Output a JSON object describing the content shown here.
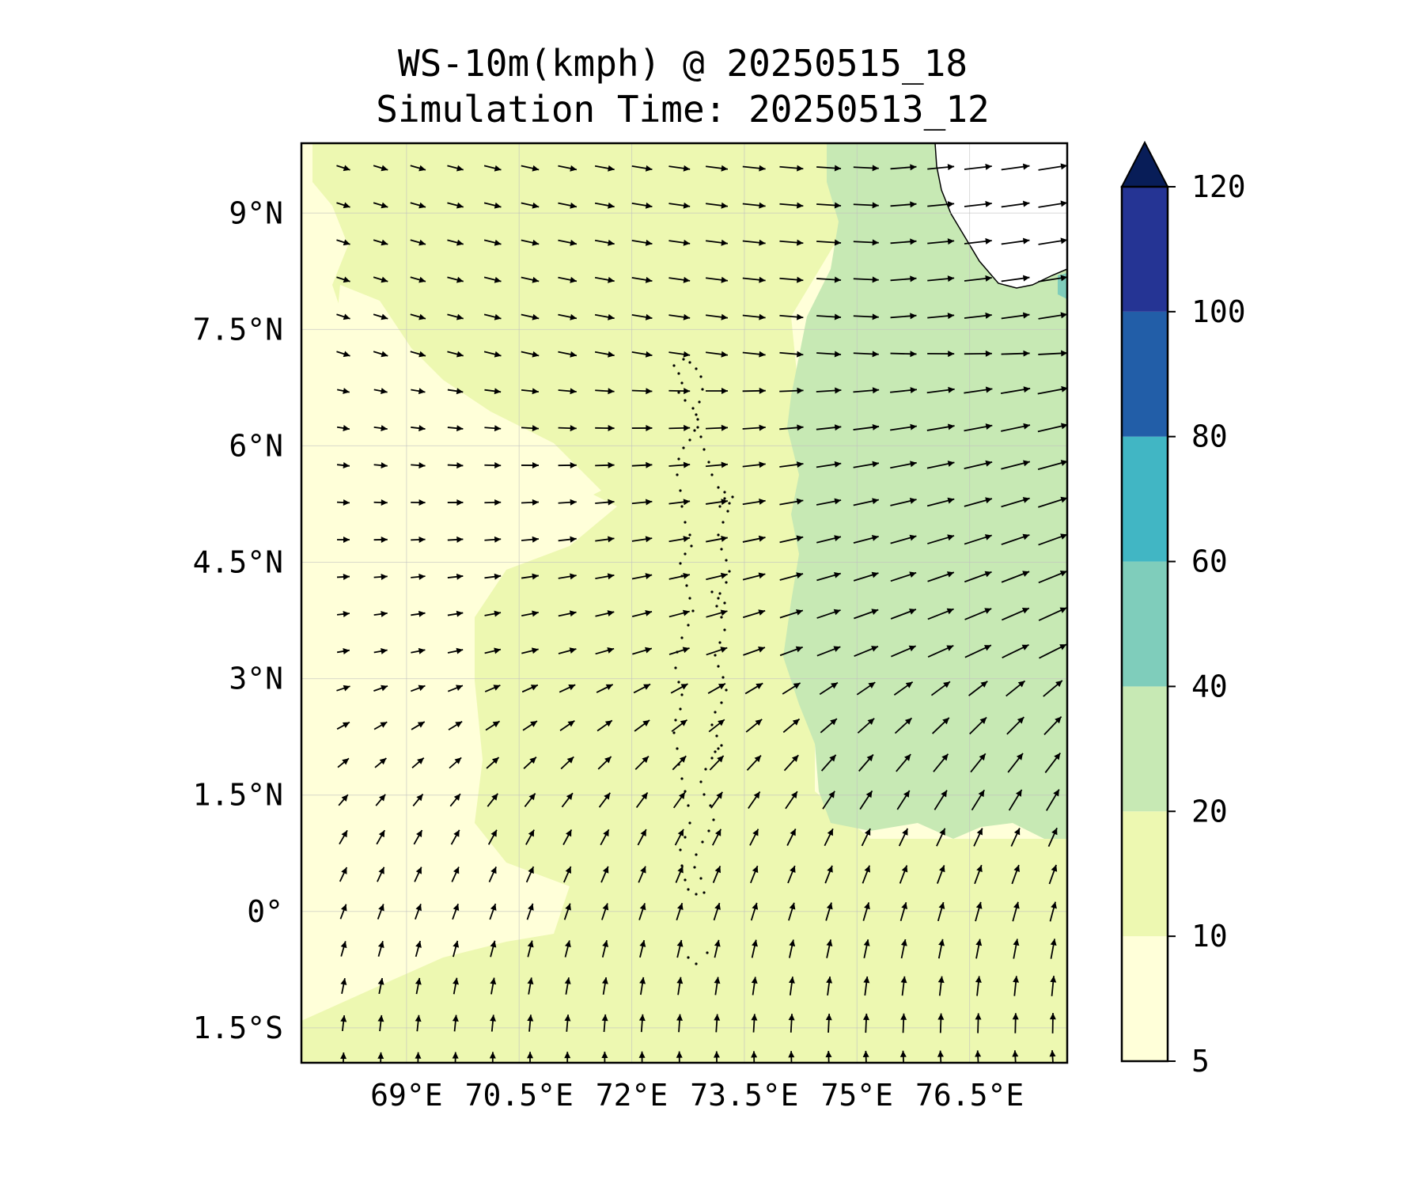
{
  "title": {
    "line1": "WS-10m(kmph) @ 20250515_18",
    "line2": "Simulation Time: 20250513_12"
  },
  "map": {
    "lon_range": [
      67.6,
      77.8
    ],
    "lat_range": [
      -1.95,
      9.9
    ],
    "lon_ticks": [
      {
        "value": 69.0,
        "label": "69°E"
      },
      {
        "value": 70.5,
        "label": "70.5°E"
      },
      {
        "value": 72.0,
        "label": "72°E"
      },
      {
        "value": 73.5,
        "label": "73.5°E"
      },
      {
        "value": 75.0,
        "label": "75°E"
      },
      {
        "value": 76.5,
        "label": "76.5°E"
      }
    ],
    "lat_ticks": [
      {
        "value": 9.0,
        "label": "9°N"
      },
      {
        "value": 7.5,
        "label": "7.5°N"
      },
      {
        "value": 6.0,
        "label": "6°N"
      },
      {
        "value": 4.5,
        "label": "4.5°N"
      },
      {
        "value": 3.0,
        "label": "3°N"
      },
      {
        "value": 1.5,
        "label": "1.5°N"
      },
      {
        "value": 0.0,
        "label": "0°"
      },
      {
        "value": -1.5,
        "label": "1.5°S"
      }
    ],
    "gridlines": true
  },
  "colorbar": {
    "levels": [
      5,
      10,
      20,
      40,
      60,
      80,
      100,
      120
    ],
    "labels": [
      "5",
      "10",
      "20",
      "40",
      "60",
      "80",
      "100",
      "120"
    ],
    "colors": [
      "#ffffd9",
      "#edf8b1",
      "#c7e9b4",
      "#7fcdbb",
      "#41b6c4",
      "#225ea8",
      "#253494"
    ],
    "extend_color": "#081d58",
    "extend": "max"
  },
  "colors": {
    "bg_low": "#ffffd9",
    "bg_mid": "#edf8b1",
    "bg_high": "#c7e9b4",
    "land": "#ffffff",
    "island_dots": "#000000",
    "arrows": "#000000"
  }
}
